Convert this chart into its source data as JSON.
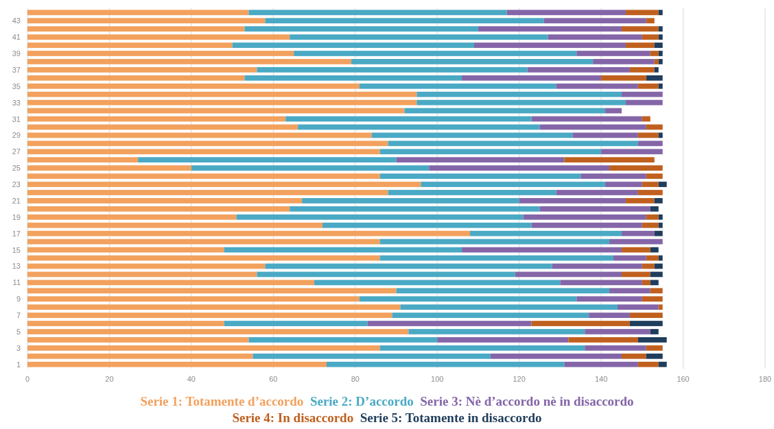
{
  "chart_data": {
    "type": "bar",
    "orientation": "horizontal",
    "stacked": true,
    "grid": "x",
    "legend": "bottom",
    "categories": [
      null,
      "43",
      null,
      "41",
      null,
      "39",
      null,
      "37",
      null,
      "35",
      null,
      "33",
      null,
      "31",
      null,
      "29",
      null,
      "27",
      null,
      "25",
      null,
      "23",
      null,
      "21",
      null,
      "19",
      null,
      "17",
      null,
      "15",
      null,
      "13",
      null,
      "11",
      null,
      "9",
      null,
      "7",
      null,
      "5",
      null,
      "3",
      null,
      "1"
    ],
    "xlim": [
      0,
      180
    ],
    "xticks": [
      0,
      20,
      40,
      60,
      80,
      100,
      120,
      140,
      160,
      180
    ],
    "series": [
      {
        "name": "Serie 1: Totamente d’accordo",
        "color": "#f2a15e",
        "values": [
          54,
          58,
          53,
          64,
          50,
          65,
          79,
          56,
          53,
          81,
          95,
          95,
          92,
          63,
          66,
          84,
          88,
          86,
          27,
          40,
          86,
          96,
          88,
          67,
          64,
          51,
          72,
          108,
          86,
          48,
          86,
          58,
          56,
          70,
          90,
          81,
          91,
          89,
          48,
          93,
          54,
          86,
          55,
          73
        ]
      },
      {
        "name": "Serie 2: D’accordo",
        "color": "#4aa9c4",
        "values": [
          63,
          68,
          57,
          63,
          59,
          69,
          59,
          66,
          53,
          48,
          50,
          51,
          49,
          60,
          59,
          49,
          61,
          54,
          63,
          58,
          49,
          45,
          41,
          53,
          61,
          70,
          51,
          37,
          56,
          58,
          57,
          70,
          63,
          60,
          52,
          53,
          53,
          48,
          35,
          43,
          46,
          50,
          58,
          58
        ]
      },
      {
        "name": "Serie 3: Nè d’accordo nè in disaccordo",
        "color": "#8466a8",
        "values": [
          29,
          25,
          35,
          23,
          37,
          18,
          15,
          25,
          34,
          20,
          10,
          9,
          4,
          27,
          26,
          16,
          6,
          15,
          41,
          44,
          16,
          9,
          20,
          26,
          27,
          30,
          27,
          8,
          13,
          39,
          8,
          22,
          26,
          20,
          10,
          16,
          10,
          10,
          40,
          16,
          32,
          15,
          32,
          18
        ]
      },
      {
        "name": "Serie 4: In disaccordo",
        "color": "#c0601e",
        "values": [
          8,
          2,
          9,
          4,
          7,
          2,
          1,
          6,
          11,
          5,
          0,
          0,
          0,
          2,
          4,
          5,
          0,
          0,
          22,
          13,
          4,
          4,
          6,
          7,
          0,
          3,
          4,
          0,
          0,
          7,
          3,
          3,
          7,
          2,
          3,
          5,
          1,
          8,
          24,
          0,
          17,
          4,
          6,
          5
        ]
      },
      {
        "name": "Serie 5: Totamente in disaccordo",
        "color": "#1f3d5c",
        "values": [
          1,
          0,
          1,
          1,
          2,
          1,
          1,
          1,
          4,
          1,
          0,
          0,
          0,
          0,
          0,
          1,
          0,
          0,
          0,
          0,
          0,
          2,
          0,
          2,
          2,
          1,
          1,
          2,
          0,
          2,
          1,
          2,
          3,
          2,
          0,
          0,
          0,
          0,
          8,
          2,
          7,
          0,
          4,
          2
        ]
      }
    ]
  }
}
